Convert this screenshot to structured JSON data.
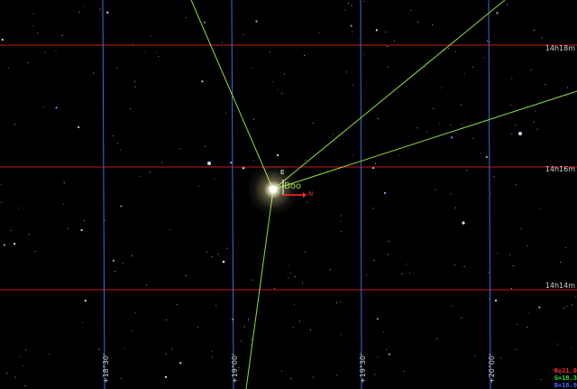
{
  "view": {
    "ra_labels": [
      "14h18m",
      "14h16m",
      "14h14m"
    ],
    "dec_labels": [
      "+18°30'",
      "+19°00'",
      "+19°30'",
      "+20°00'"
    ],
    "object_label": "Boo",
    "direction_north": "N",
    "direction_east": "E"
  },
  "colors": {
    "ra_line": "#c81a1a",
    "dec_line": "#3a6fd8",
    "pointer_line": "#8fdc3a",
    "compass": "#ff2a2a"
  },
  "rgb_readout": {
    "r": "R=21.0",
    "g": "G=18.3",
    "b": "B=16.9"
  }
}
